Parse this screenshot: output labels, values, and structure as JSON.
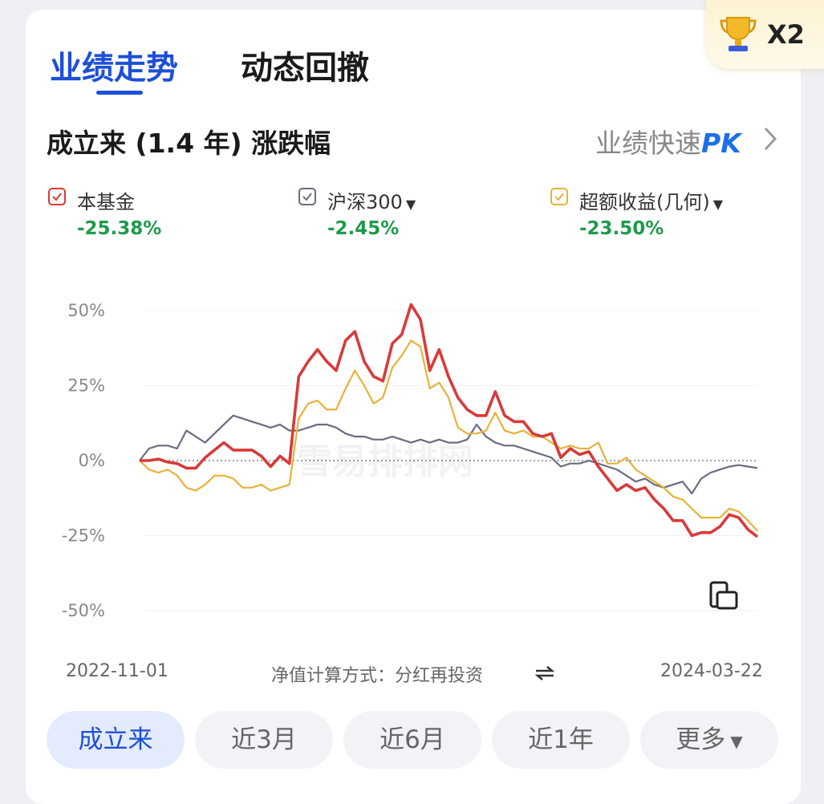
{
  "tabs": [
    {
      "label": "业绩走势",
      "active": true
    },
    {
      "label": "动态回撤",
      "active": false
    }
  ],
  "badge": {
    "icon": "trophy-icon",
    "multiplier": "X2"
  },
  "subtitle": "成立来 (1.4 年) 涨跌幅",
  "pk_link": {
    "prefix": "业绩快速",
    "accent": "PK"
  },
  "legend": [
    {
      "name": "本基金",
      "value": "-25.38%",
      "color": "#d83a3a",
      "dropdown": false
    },
    {
      "name": "沪深300",
      "value": "-2.45%",
      "color": "#6b6b82",
      "dropdown": true
    },
    {
      "name": "超额收益(几何)",
      "value": "-23.50%",
      "color": "#e8b23a",
      "dropdown": true
    }
  ],
  "chart_data": {
    "type": "line",
    "x_start": "2022-11-01",
    "x_end": "2024-03-22",
    "y_ticks": [
      "50%",
      "25%",
      "0%",
      "-25%",
      "-50%"
    ],
    "ylim": [
      -50,
      50
    ],
    "watermark": "雪易排排网",
    "series": [
      {
        "name": "本基金",
        "color": "#d83a3a",
        "values": [
          0,
          0,
          0.5,
          -0.5,
          -1,
          -2.5,
          -2.5,
          1,
          3.5,
          6,
          3.5,
          3.5,
          3.5,
          1.5,
          -2,
          1.5,
          -1,
          28,
          33,
          37,
          33,
          30,
          40,
          43,
          33,
          28,
          26.5,
          39,
          42,
          52,
          47,
          30,
          37,
          28,
          21,
          17,
          15,
          15,
          23,
          15,
          13,
          13,
          9,
          8,
          9,
          1,
          4,
          2,
          3,
          -2,
          -6,
          -10,
          -8,
          -10,
          -9,
          -13,
          -16,
          -20,
          -20,
          -25,
          -24,
          -24,
          -22,
          -18,
          -19,
          -23,
          -25.4
        ]
      },
      {
        "name": "沪深300",
        "color": "#6b6b82",
        "values": [
          0,
          4,
          5,
          5,
          4,
          10,
          8,
          6,
          9,
          12,
          15,
          14,
          13,
          12,
          11,
          12,
          10,
          10,
          11,
          12,
          12,
          11,
          9,
          8,
          8,
          7,
          7,
          8,
          7,
          6,
          7,
          6,
          7,
          6,
          6,
          7,
          12,
          8,
          6,
          5,
          5,
          4,
          3,
          2,
          1,
          -2,
          -1,
          -1,
          0,
          -1,
          -2,
          -3,
          -5,
          -7,
          -6,
          -8,
          -9,
          -8,
          -7,
          -11,
          -6,
          -4,
          -3,
          -2,
          -1.5,
          -2,
          -2.45
        ]
      },
      {
        "name": "超额收益(几何)",
        "color": "#e8b23a",
        "values": [
          0,
          -3,
          -4,
          -3,
          -5,
          -9,
          -10,
          -8,
          -5,
          -5,
          -6,
          -9,
          -9,
          -8,
          -10,
          -9,
          -8,
          14,
          19,
          20,
          17,
          17,
          24,
          30,
          25,
          19,
          21,
          31,
          35,
          40,
          38,
          24,
          26,
          21,
          11,
          9,
          9,
          10,
          16,
          10,
          9,
          10,
          8,
          8,
          6,
          4,
          5,
          4,
          4,
          6,
          -1,
          -1,
          1,
          -3,
          -5,
          -7,
          -9,
          -12,
          -13,
          -16,
          -19,
          -19,
          -19,
          -16,
          -17,
          -20,
          -23.5
        ]
      }
    ]
  },
  "footer": {
    "date_start": "2022-11-01",
    "date_end": "2024-03-22",
    "method": "净值计算方式：分红再投资"
  },
  "ranges": [
    {
      "label": "成立来",
      "active": true
    },
    {
      "label": "近3月",
      "active": false
    },
    {
      "label": "近6月",
      "active": false
    },
    {
      "label": "近1年",
      "active": false
    },
    {
      "label": "更多",
      "active": false,
      "dropdown": true
    }
  ]
}
